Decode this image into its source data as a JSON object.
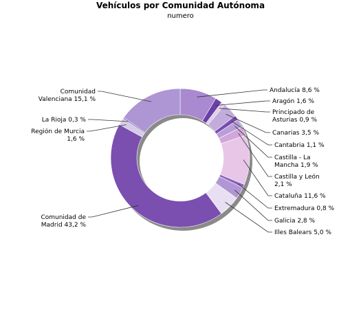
{
  "chart_data": {
    "type": "pie",
    "title": "Vehículos por Comunidad Autónoma",
    "subtitle": "numero",
    "slices": [
      {
        "name": "Andalucía",
        "value": 8.6,
        "label": [
          "Andalucía 8,6 %"
        ],
        "color": "#a989d0"
      },
      {
        "name": "Aragón",
        "value": 1.6,
        "label": [
          "Aragón 1,6 %"
        ],
        "color": "#6a3fa8"
      },
      {
        "name": "Principado de Asturias",
        "value": 0.9,
        "label": [
          "Principado de",
          "Asturias 0,9 %"
        ],
        "color": "#e0cfe8"
      },
      {
        "name": "Canarias",
        "value": 3.5,
        "label": [
          "Canarias 3,5 %"
        ],
        "color": "#c2acdc"
      },
      {
        "name": "Cantabria",
        "value": 1.1,
        "label": [
          "Cantabria 1,1 %"
        ],
        "color": "#7b4cb0"
      },
      {
        "name": "Castilla - La Mancha",
        "value": 1.9,
        "label": [
          "Castilla - La",
          "Mancha 1,9 %"
        ],
        "color": "#b79fd8"
      },
      {
        "name": "Castilla y León",
        "value": 2.1,
        "label": [
          "Castilla y León",
          "2,1 %"
        ],
        "color": "#d2a6db"
      },
      {
        "name": "Cataluña",
        "value": 11.6,
        "label": [
          "Cataluña 11,6 %"
        ],
        "color": "#e7c6e8"
      },
      {
        "name": "Extremadura",
        "value": 0.8,
        "label": [
          "Extremadura 0,8 %"
        ],
        "color": "#8c63c0"
      },
      {
        "name": "Galicia",
        "value": 2.8,
        "label": [
          "Galicia 2,8 %"
        ],
        "color": "#b096d2"
      },
      {
        "name": "Illes Balears",
        "value": 5.0,
        "label": [
          "Illes Balears 5,0 %"
        ],
        "color": "#e8e0f2"
      },
      {
        "name": "Comunidad de Madrid",
        "value": 43.2,
        "label": [
          "Comunidad de",
          "Madrid 43,2 %"
        ],
        "color": "#7a4fb0"
      },
      {
        "name": "Región de Murcia",
        "value": 1.6,
        "label": [
          "Región de Murcia",
          "1,6 %"
        ],
        "color": "#d6cbe6"
      },
      {
        "name": "La Rioja",
        "value": 0.3,
        "label": [
          "La Rioja 0,3 %"
        ],
        "color": "#8660bd"
      },
      {
        "name": "Comunidad Valenciana",
        "value": 15.1,
        "label": [
          "Comunidad",
          "Valenciana 15,1 %"
        ],
        "color": "#ae96d4"
      }
    ]
  }
}
